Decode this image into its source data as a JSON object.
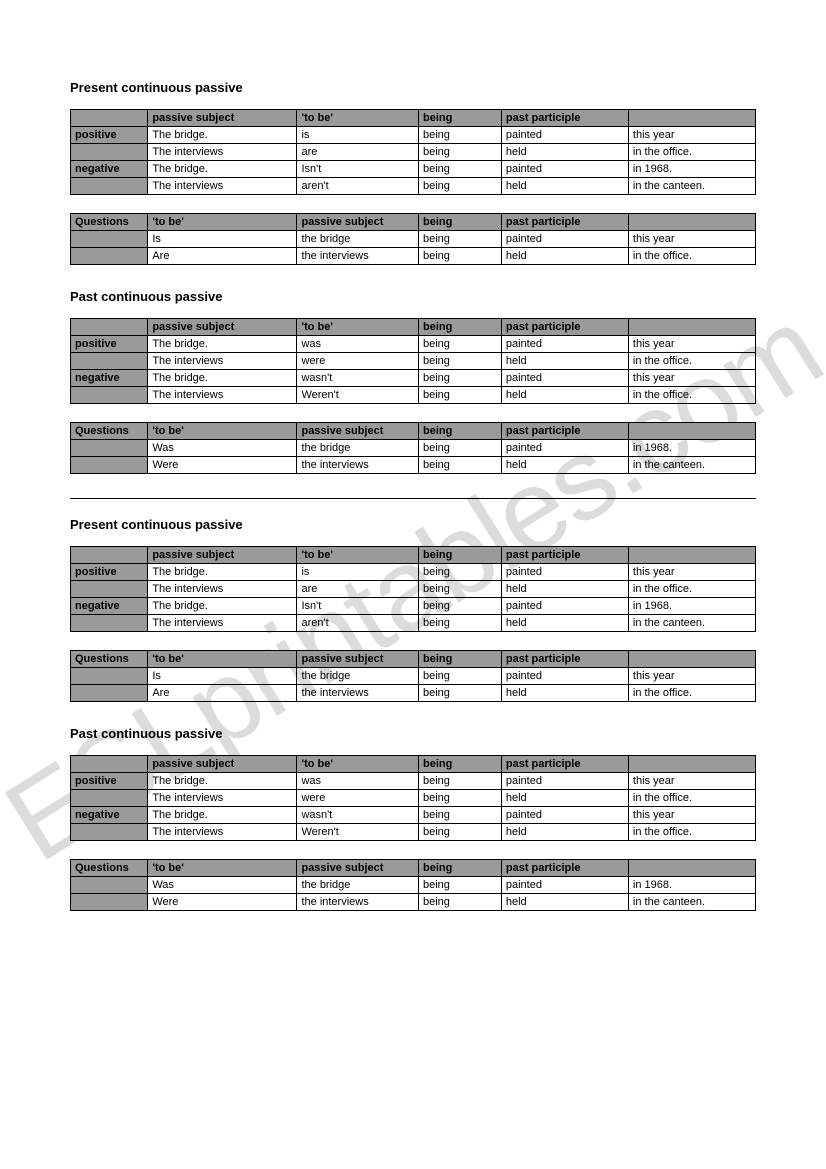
{
  "watermark": "ESLprintables.com",
  "sections": [
    {
      "title": "Present continuous passive",
      "main": {
        "headers": [
          "",
          "passive subject",
          "'to be'",
          "being",
          "past participle",
          ""
        ],
        "rows": [
          {
            "label": "positive",
            "cells": [
              "The bridge.",
              "is",
              "being",
              "painted",
              "this year"
            ]
          },
          {
            "label": "",
            "cells": [
              "The interviews",
              "are",
              "being",
              "held",
              "in the office."
            ]
          },
          {
            "label": "negative",
            "cells": [
              "The bridge.",
              "Isn't",
              "being",
              "painted",
              "in 1968."
            ]
          },
          {
            "label": "",
            "cells": [
              "The interviews",
              "aren't",
              "being",
              "held",
              "in the canteen."
            ]
          }
        ]
      },
      "questions": {
        "headers": [
          "Questions",
          "'to be'",
          "passive subject",
          "being",
          "past participle",
          ""
        ],
        "rows": [
          {
            "label": "",
            "cells": [
              "Is",
              "the bridge",
              "being",
              "painted",
              "this year"
            ]
          },
          {
            "label": "",
            "cells": [
              "Are",
              "the interviews",
              "being",
              "held",
              "in the office."
            ]
          }
        ]
      }
    },
    {
      "title": "Past continuous passive",
      "main": {
        "headers": [
          "",
          "passive subject",
          "'to be'",
          "being",
          "past participle",
          ""
        ],
        "rows": [
          {
            "label": "positive",
            "cells": [
              "The bridge.",
              "was",
              "being",
              "painted",
              "this year"
            ]
          },
          {
            "label": "",
            "cells": [
              "The interviews",
              "were",
              "being",
              "held",
              "in the office."
            ]
          },
          {
            "label": "negative",
            "cells": [
              "The bridge.",
              "wasn't",
              "being",
              "painted",
              "this year"
            ]
          },
          {
            "label": "",
            "cells": [
              "The interviews",
              "Weren't",
              "being",
              "held",
              "in the office."
            ]
          }
        ]
      },
      "questions": {
        "headers": [
          "Questions",
          "'to be'",
          "passive subject",
          "being",
          "past participle",
          ""
        ],
        "rows": [
          {
            "label": "",
            "cells": [
              "Was",
              "the bridge",
              "being",
              "painted",
              "in 1968."
            ]
          },
          {
            "label": "",
            "cells": [
              "Were",
              "the interviews",
              "being",
              "held",
              "in the canteen."
            ]
          }
        ]
      },
      "divider_after": true
    },
    {
      "title": "Present continuous passive",
      "main": {
        "headers": [
          "",
          "passive subject",
          "'to be'",
          "being",
          "past participle",
          ""
        ],
        "rows": [
          {
            "label": "positive",
            "cells": [
              "The bridge.",
              "is",
              "being",
              "painted",
              "this year"
            ]
          },
          {
            "label": "",
            "cells": [
              "The interviews",
              "are",
              "being",
              "held",
              "in the office."
            ]
          },
          {
            "label": "negative",
            "cells": [
              "The bridge.",
              "Isn't",
              "being",
              "painted",
              "in 1968."
            ]
          },
          {
            "label": "",
            "cells": [
              "The interviews",
              "aren't",
              "being",
              "held",
              "in the canteen."
            ]
          }
        ]
      },
      "questions": {
        "headers": [
          "Questions",
          "'to be'",
          "passive subject",
          "being",
          "past participle",
          ""
        ],
        "rows": [
          {
            "label": "",
            "cells": [
              "Is",
              "the bridge",
              "being",
              "painted",
              "this year"
            ]
          },
          {
            "label": "",
            "cells": [
              "Are",
              "the interviews",
              "being",
              "held",
              "in the office."
            ]
          }
        ]
      }
    },
    {
      "title": "Past continuous passive",
      "main": {
        "headers": [
          "",
          "passive subject",
          "'to be'",
          "being",
          "past participle",
          ""
        ],
        "rows": [
          {
            "label": "positive",
            "cells": [
              "The bridge.",
              "was",
              "being",
              "painted",
              "this year"
            ]
          },
          {
            "label": "",
            "cells": [
              "The interviews",
              "were",
              "being",
              "held",
              "in the office."
            ]
          },
          {
            "label": "negative",
            "cells": [
              "The bridge.",
              "wasn't",
              "being",
              "painted",
              "this year"
            ]
          },
          {
            "label": "",
            "cells": [
              "The interviews",
              "Weren't",
              "being",
              "held",
              "in the office."
            ]
          }
        ]
      },
      "questions": {
        "headers": [
          "Questions",
          "'to be'",
          "passive subject",
          "being",
          "past participle",
          ""
        ],
        "rows": [
          {
            "label": "",
            "cells": [
              "Was",
              "the bridge",
              "being",
              "painted",
              "in 1968."
            ]
          },
          {
            "label": "",
            "cells": [
              "Were",
              "the interviews",
              "being",
              "held",
              "in the canteen."
            ]
          }
        ]
      }
    }
  ]
}
